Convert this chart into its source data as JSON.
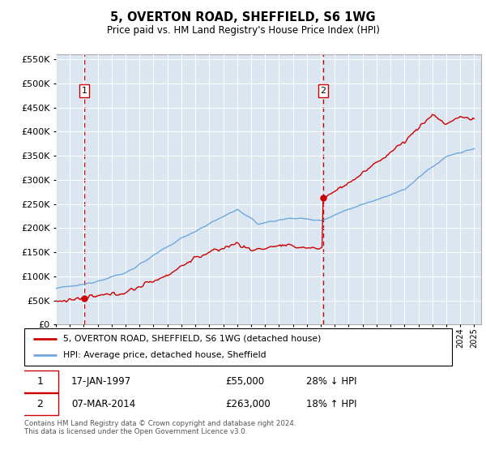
{
  "title": "5, OVERTON ROAD, SHEFFIELD, S6 1WG",
  "subtitle": "Price paid vs. HM Land Registry's House Price Index (HPI)",
  "legend_line1": "5, OVERTON ROAD, SHEFFIELD, S6 1WG (detached house)",
  "legend_line2": "HPI: Average price, detached house, Sheffield",
  "transaction1_date": "17-JAN-1997",
  "transaction1_price": "£55,000",
  "transaction1_hpi": "28% ↓ HPI",
  "transaction1_year": 1997.04,
  "transaction1_value": 55000,
  "transaction2_date": "07-MAR-2014",
  "transaction2_price": "£263,000",
  "transaction2_hpi": "18% ↑ HPI",
  "transaction2_year": 2014.18,
  "transaction2_value": 263000,
  "footnote": "Contains HM Land Registry data © Crown copyright and database right 2024.\nThis data is licensed under the Open Government Licence v3.0.",
  "plot_bg_color": "#dce6f1",
  "red_color": "#cc0000",
  "blue_color": "#6fa8dc",
  "ylim_min": 0,
  "ylim_max": 560000,
  "xlim_min": 1995,
  "xlim_max": 2025.5
}
